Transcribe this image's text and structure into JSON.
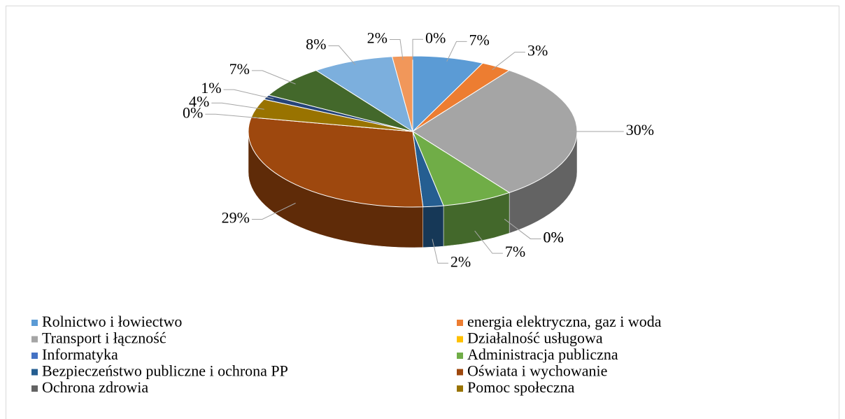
{
  "chart_data": {
    "type": "pie",
    "categories": [
      "Rolnictwo i łowiectwo",
      " energia elektryczna, gaz i woda",
      "Transport i łączność",
      "Działalność usługowa",
      "Informatyka",
      "Administracja publiczna",
      "Bezpieczeństwo publiczne i ochrona PP",
      "Oświata i wychowanie",
      "Ochrona zdrowia",
      "Pomoc społeczna",
      null,
      null,
      null,
      null,
      null
    ],
    "values": [
      7,
      3,
      30,
      0,
      0,
      7,
      2,
      29,
      0,
      4,
      1,
      7,
      8,
      2,
      0
    ],
    "value_labels": [
      "7%",
      "3%",
      "30%",
      "0%",
      "0%",
      "7%",
      "2%",
      "29%",
      "0%",
      "4%",
      "1%",
      "7%",
      "8%",
      "2%",
      "0%"
    ],
    "colors": [
      "#5b9bd5",
      "#ed7d31",
      "#a5a5a5",
      "#ffc000",
      "#4472c4",
      "#70ad47",
      "#255e91",
      "#9e480e",
      "#636363",
      "#997300",
      "#264478",
      "#43682b",
      "#7cafdd",
      "#f1975a",
      "#b9b9b9"
    ]
  }
}
